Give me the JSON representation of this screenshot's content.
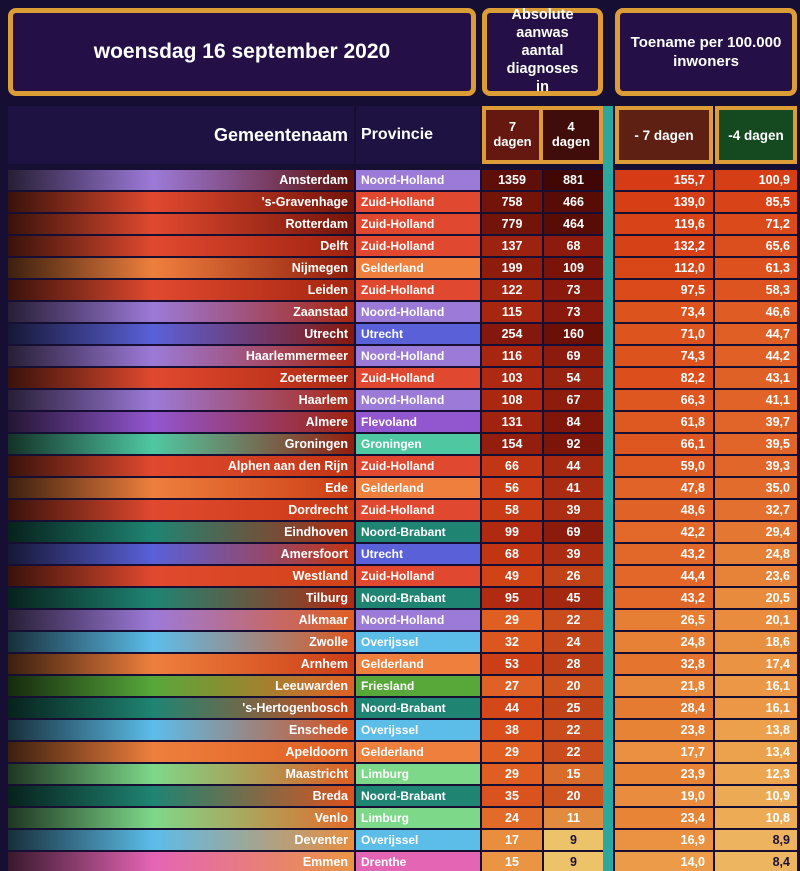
{
  "style": {
    "page_bg": "#170e33",
    "gold_border": "#dd9d36",
    "teal_stripe": "#2aa79f",
    "title_box_bg": "#241046",
    "left_header_bg": "#1d1242",
    "d7_header_bg": "#64180f",
    "d4_header_bg": "#400d0b",
    "t7_header_bg": "#5d2012",
    "t4_header_bg": "#154a20",
    "province_colors": {
      "Noord-Holland": "#9c7ad8",
      "Zuid-Holland": "#e0492f",
      "Gelderland": "#ee7f3d",
      "Utrecht": "#5a60d8",
      "Flevoland": "#9256cf",
      "Groningen": "#4fc8a2",
      "Noord-Brabant": "#1f8472",
      "Overijssel": "#5cbde9",
      "Friesland": "#57a839",
      "Limburg": "#7ed889",
      "Drenthe": "#e565b5"
    }
  },
  "chart_data": {
    "type": "table",
    "title": "woensdag 16 september 2020",
    "group_headers": [
      "Absolute aanwas aantal diagnoses in",
      "Toename per 100.000 inwoners"
    ],
    "columns": [
      "Gemeentenaam",
      "Provincie",
      "7 dagen",
      "4 dagen",
      "- 7 dagen",
      "-4 dagen"
    ],
    "rows": [
      {
        "gemeente": "Amsterdam",
        "provincie": "Noord-Holland",
        "d7": "1359",
        "d4": "881",
        "t7": "155,7",
        "t4": "100,9",
        "colors": {
          "d7": "#5e0f0a",
          "d4": "#400704",
          "t7": "#d53c15",
          "t4": "#d63e16"
        }
      },
      {
        "gemeente": "'s-Gravenhage",
        "provincie": "Zuid-Holland",
        "d7": "758",
        "d4": "466",
        "t7": "139,0",
        "t4": "85,5",
        "colors": {
          "d7": "#731409",
          "d4": "#570c06",
          "t7": "#d63f16",
          "t4": "#d84418"
        }
      },
      {
        "gemeente": "Rotterdam",
        "provincie": "Zuid-Holland",
        "d7": "779",
        "d4": "464",
        "t7": "119,6",
        "t4": "71,2",
        "colors": {
          "d7": "#731409",
          "d4": "#570c06",
          "t7": "#d84417",
          "t4": "#da4a1b"
        }
      },
      {
        "gemeente": "Delft",
        "provincie": "Zuid-Holland",
        "d7": "137",
        "d4": "68",
        "t7": "132,2",
        "t4": "65,6",
        "colors": {
          "d7": "#9e2210",
          "d4": "#8c1b0d",
          "t7": "#d74117",
          "t4": "#db4e1d"
        }
      },
      {
        "gemeente": "Nijmegen",
        "provincie": "Gelderland",
        "d7": "199",
        "d4": "109",
        "t7": "112,0",
        "t4": "61,3",
        "colors": {
          "d7": "#8e1c0d",
          "d4": "#7a140a",
          "t7": "#d94618",
          "t4": "#dc511e"
        }
      },
      {
        "gemeente": "Leiden",
        "provincie": "Zuid-Holland",
        "d7": "122",
        "d4": "73",
        "t7": "97,5",
        "t4": "58,3",
        "colors": {
          "d7": "#a4250f",
          "d4": "#88190c",
          "t7": "#da4a1a",
          "t4": "#dd5420"
        }
      },
      {
        "gemeente": "Zaanstad",
        "provincie": "Noord-Holland",
        "d7": "115",
        "d4": "73",
        "t7": "73,4",
        "t4": "46,6",
        "colors": {
          "d7": "#a72610",
          "d4": "#88190c",
          "t7": "#dd531e",
          "t4": "#df5d24"
        }
      },
      {
        "gemeente": "Utrecht",
        "provincie": "Utrecht",
        "d7": "254",
        "d4": "160",
        "t7": "71,0",
        "t4": "44,7",
        "colors": {
          "d7": "#85180c",
          "d4": "#6a1007",
          "t7": "#dd541f",
          "t4": "#e05f25"
        }
      },
      {
        "gemeente": "Haarlemmermeer",
        "provincie": "Noord-Holland",
        "d7": "116",
        "d4": "69",
        "t7": "74,3",
        "t4": "44,2",
        "colors": {
          "d7": "#a72610",
          "d4": "#8b1b0d",
          "t7": "#dd531e",
          "t4": "#e06026"
        }
      },
      {
        "gemeente": "Zoetermeer",
        "provincie": "Zuid-Holland",
        "d7": "103",
        "d4": "54",
        "t7": "82,2",
        "t4": "43,1",
        "colors": {
          "d7": "#ad2911",
          "d4": "#972210",
          "t7": "#dc4f1c",
          "t4": "#e06126"
        }
      },
      {
        "gemeente": "Haarlem",
        "provincie": "Noord-Holland",
        "d7": "108",
        "d4": "67",
        "t7": "66,3",
        "t4": "41,1",
        "colors": {
          "d7": "#aa2810",
          "d4": "#8d1c0d",
          "t7": "#de5620",
          "t4": "#e16328"
        }
      },
      {
        "gemeente": "Almere",
        "provincie": "Flevoland",
        "d7": "131",
        "d4": "84",
        "t7": "61,8",
        "t4": "39,7",
        "colors": {
          "d7": "#9f230f",
          "d4": "#801609",
          "t7": "#de5822",
          "t4": "#e16529"
        }
      },
      {
        "gemeente": "Groningen",
        "provincie": "Groningen",
        "d7": "154",
        "d4": "92",
        "t7": "66,1",
        "t4": "39,5",
        "colors": {
          "d7": "#931e0e",
          "d4": "#7b150a",
          "t7": "#de5620",
          "t4": "#e16529"
        }
      },
      {
        "gemeente": "Alphen aan den Rijn",
        "provincie": "Zuid-Holland",
        "d7": "66",
        "d4": "44",
        "t7": "59,0",
        "t4": "39,3",
        "colors": {
          "d7": "#c33614",
          "d4": "#a52810",
          "t7": "#df5a23",
          "t4": "#e1662a"
        }
      },
      {
        "gemeente": "Ede",
        "provincie": "Gelderland",
        "d7": "56",
        "d4": "41",
        "t7": "47,8",
        "t4": "35,0",
        "colors": {
          "d7": "#cb3d16",
          "d4": "#a92b12",
          "t7": "#e16327",
          "t4": "#e26c2c"
        }
      },
      {
        "gemeente": "Dordrecht",
        "provincie": "Zuid-Holland",
        "d7": "58",
        "d4": "39",
        "t7": "48,6",
        "t4": "32,7",
        "colors": {
          "d7": "#c93b15",
          "d4": "#ac2d12",
          "t7": "#e16226",
          "t4": "#e3702e"
        }
      },
      {
        "gemeente": "Eindhoven",
        "provincie": "Noord-Brabant",
        "d7": "99",
        "d4": "69",
        "t7": "42,2",
        "t4": "29,4",
        "colors": {
          "d7": "#af2a11",
          "d4": "#8b1b0d",
          "t7": "#e26929",
          "t4": "#e47731"
        }
      },
      {
        "gemeente": "Amersfoort",
        "provincie": "Utrecht",
        "d7": "68",
        "d4": "39",
        "t7": "43,2",
        "t4": "24,8",
        "colors": {
          "d7": "#c23513",
          "d4": "#ac2d12",
          "t7": "#e2682a",
          "t4": "#e68036"
        }
      },
      {
        "gemeente": "Westland",
        "provincie": "Zuid-Holland",
        "d7": "49",
        "d4": "26",
        "t7": "44,4",
        "t4": "23,6",
        "colors": {
          "d7": "#d04317",
          "d4": "#c24218",
          "t7": "#e26729",
          "t4": "#e78338"
        }
      },
      {
        "gemeente": "Tilburg",
        "provincie": "Noord-Brabant",
        "d7": "95",
        "d4": "45",
        "t7": "43,2",
        "t4": "20,5",
        "colors": {
          "d7": "#b02b11",
          "d4": "#a42710",
          "t7": "#e2682a",
          "t4": "#e88b3c"
        }
      },
      {
        "gemeente": "Alkmaar",
        "provincie": "Noord-Holland",
        "d7": "29",
        "d4": "22",
        "t7": "26,5",
        "t4": "20,1",
        "colors": {
          "d7": "#df5e22",
          "d4": "#ca4c1c",
          "t7": "#e67e33",
          "t4": "#e98c3d"
        }
      },
      {
        "gemeente": "Zwolle",
        "provincie": "Overijssel",
        "d7": "32",
        "d4": "24",
        "t7": "24,8",
        "t4": "18,6",
        "colors": {
          "d7": "#dc5720",
          "d4": "#c6471a",
          "t7": "#e78136",
          "t4": "#e99040"
        }
      },
      {
        "gemeente": "Arnhem",
        "provincie": "Gelderland",
        "d7": "53",
        "d4": "28",
        "t7": "32,8",
        "t4": "17,4",
        "colors": {
          "d7": "#cc3e16",
          "d4": "#bd3d16",
          "t7": "#e4742e",
          "t4": "#ea9342"
        }
      },
      {
        "gemeente": "Leeuwarden",
        "provincie": "Friesland",
        "d7": "27",
        "d4": "20",
        "t7": "21,8",
        "t4": "16,1",
        "colors": {
          "d7": "#e06126",
          "d4": "#cf531f",
          "t7": "#e88739",
          "t4": "#eb9745"
        }
      },
      {
        "gemeente": "'s-Hertogenbosch",
        "provincie": "Noord-Brabant",
        "d7": "44",
        "d4": "25",
        "t7": "28,4",
        "t4": "16,1",
        "colors": {
          "d7": "#d34719",
          "d4": "#c34318",
          "t7": "#e57a31",
          "t4": "#eb9745"
        }
      },
      {
        "gemeente": "Enschede",
        "provincie": "Overijssel",
        "d7": "38",
        "d4": "22",
        "t7": "23,8",
        "t4": "13,8",
        "colors": {
          "d7": "#d84f1c",
          "d4": "#ca4c1c",
          "t7": "#e78335",
          "t4": "#eca04b"
        }
      },
      {
        "gemeente": "Apeldoorn",
        "provincie": "Gelderland",
        "d7": "29",
        "d4": "22",
        "t7": "17,7",
        "t4": "13,4",
        "colors": {
          "d7": "#df5e22",
          "d4": "#ca4c1c",
          "t7": "#ea9040",
          "t4": "#eca14c"
        }
      },
      {
        "gemeente": "Maastricht",
        "provincie": "Limburg",
        "d7": "29",
        "d4": "15",
        "t7": "23,9",
        "t4": "12,3",
        "colors": {
          "d7": "#df5e22",
          "d4": "#da6c2b",
          "t7": "#e78335",
          "t4": "#eda550"
        }
      },
      {
        "gemeente": "Breda",
        "provincie": "Noord-Brabant",
        "d7": "35",
        "d4": "20",
        "t7": "19,0",
        "t4": "10,9",
        "colors": {
          "d7": "#da521e",
          "d4": "#cf531f",
          "t7": "#e98c3d",
          "t4": "#edaa55"
        }
      },
      {
        "gemeente": "Venlo",
        "provincie": "Limburg",
        "d7": "24",
        "d4": "11",
        "t7": "23,4",
        "t4": "10,8",
        "colors": {
          "d7": "#e26b2a",
          "d4": "#e28a3e",
          "t7": "#e78436",
          "t4": "#edab56"
        }
      },
      {
        "gemeente": "Deventer",
        "provincie": "Overijssel",
        "d7": "17",
        "d4": "9",
        "t7": "16,9",
        "t4": "8,9",
        "colors": {
          "d7": "#e88e3e",
          "d4": "#ecc369",
          "t7": "#ea9242",
          "t4": "#eeb35e"
        }
      },
      {
        "gemeente": "Emmen",
        "provincie": "Drenthe",
        "d7": "15",
        "d4": "9",
        "t7": "14,0",
        "t4": "8,4",
        "colors": {
          "d7": "#ea9544",
          "d4": "#ecc369",
          "t7": "#ec9c49",
          "t4": "#eeb560"
        }
      }
    ]
  }
}
